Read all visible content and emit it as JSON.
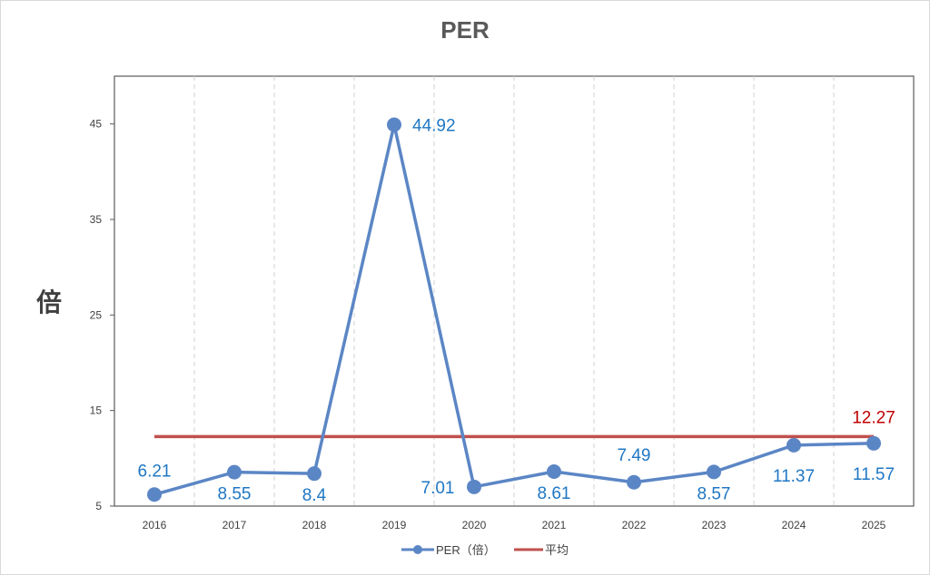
{
  "chart_data": {
    "type": "line",
    "title": "PER",
    "ylabel": "倍",
    "xlabel": "",
    "categories": [
      "2016",
      "2017",
      "2018",
      "2019",
      "2020",
      "2021",
      "2022",
      "2023",
      "2024",
      "2025"
    ],
    "series": [
      {
        "name": "PER（倍）",
        "values": [
          6.21,
          8.55,
          8.4,
          44.92,
          7.01,
          8.61,
          7.49,
          8.57,
          11.37,
          11.57
        ],
        "color": "#5b86c5",
        "label_color": "#1f77c4"
      },
      {
        "name": "平均",
        "value": 12.27,
        "color": "#c0504d",
        "label_color": "#c00000"
      }
    ],
    "data_labels": [
      "6.21",
      "8.55",
      "8.4",
      "44.92",
      "7.01",
      "8.61",
      "7.49",
      "8.57",
      "11.37",
      "11.57"
    ],
    "average_label": "12.27",
    "yticks": [
      "5",
      "15",
      "25",
      "35",
      "45"
    ],
    "ylim": [
      5,
      50
    ],
    "grid": {
      "vertical": "dashed",
      "horizontal": false
    },
    "legend": "bottom-center"
  }
}
